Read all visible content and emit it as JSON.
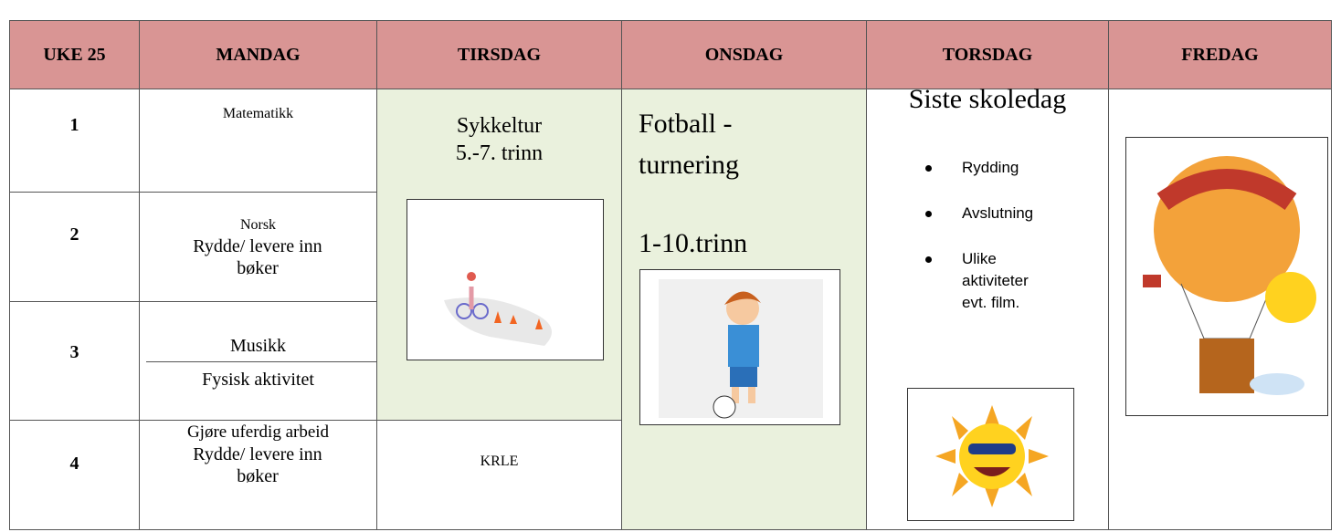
{
  "table": {
    "header": [
      "UKE 25",
      "MANDAG",
      "TIRSDAG",
      "ONSDAG",
      "TORSDAG",
      "FREDAG"
    ],
    "lessons": [
      "1",
      "2",
      "3",
      "4"
    ],
    "monday": [
      [
        "Matematikk"
      ],
      [
        "Norsk",
        "Rydde/ levere inn bøker"
      ],
      [
        "Musikk",
        "Fysisk aktivitet"
      ],
      [
        "Gjøre uferdig arbeid",
        "Rydde/ levere inn bøker"
      ]
    ],
    "tuesday": {
      "trip": [
        "Sykkeltur",
        "5.-7. trinn"
      ],
      "lesson4": "KRLE"
    },
    "wednesday": {
      "event": [
        "Fotball -",
        "turnering"
      ],
      "grades": "1-10.trinn"
    },
    "thursday": {
      "title": "Siste skoledag",
      "bullets": [
        "Rydding",
        "Avslutning",
        "Ulike aktiviteter evt. film."
      ]
    }
  }
}
